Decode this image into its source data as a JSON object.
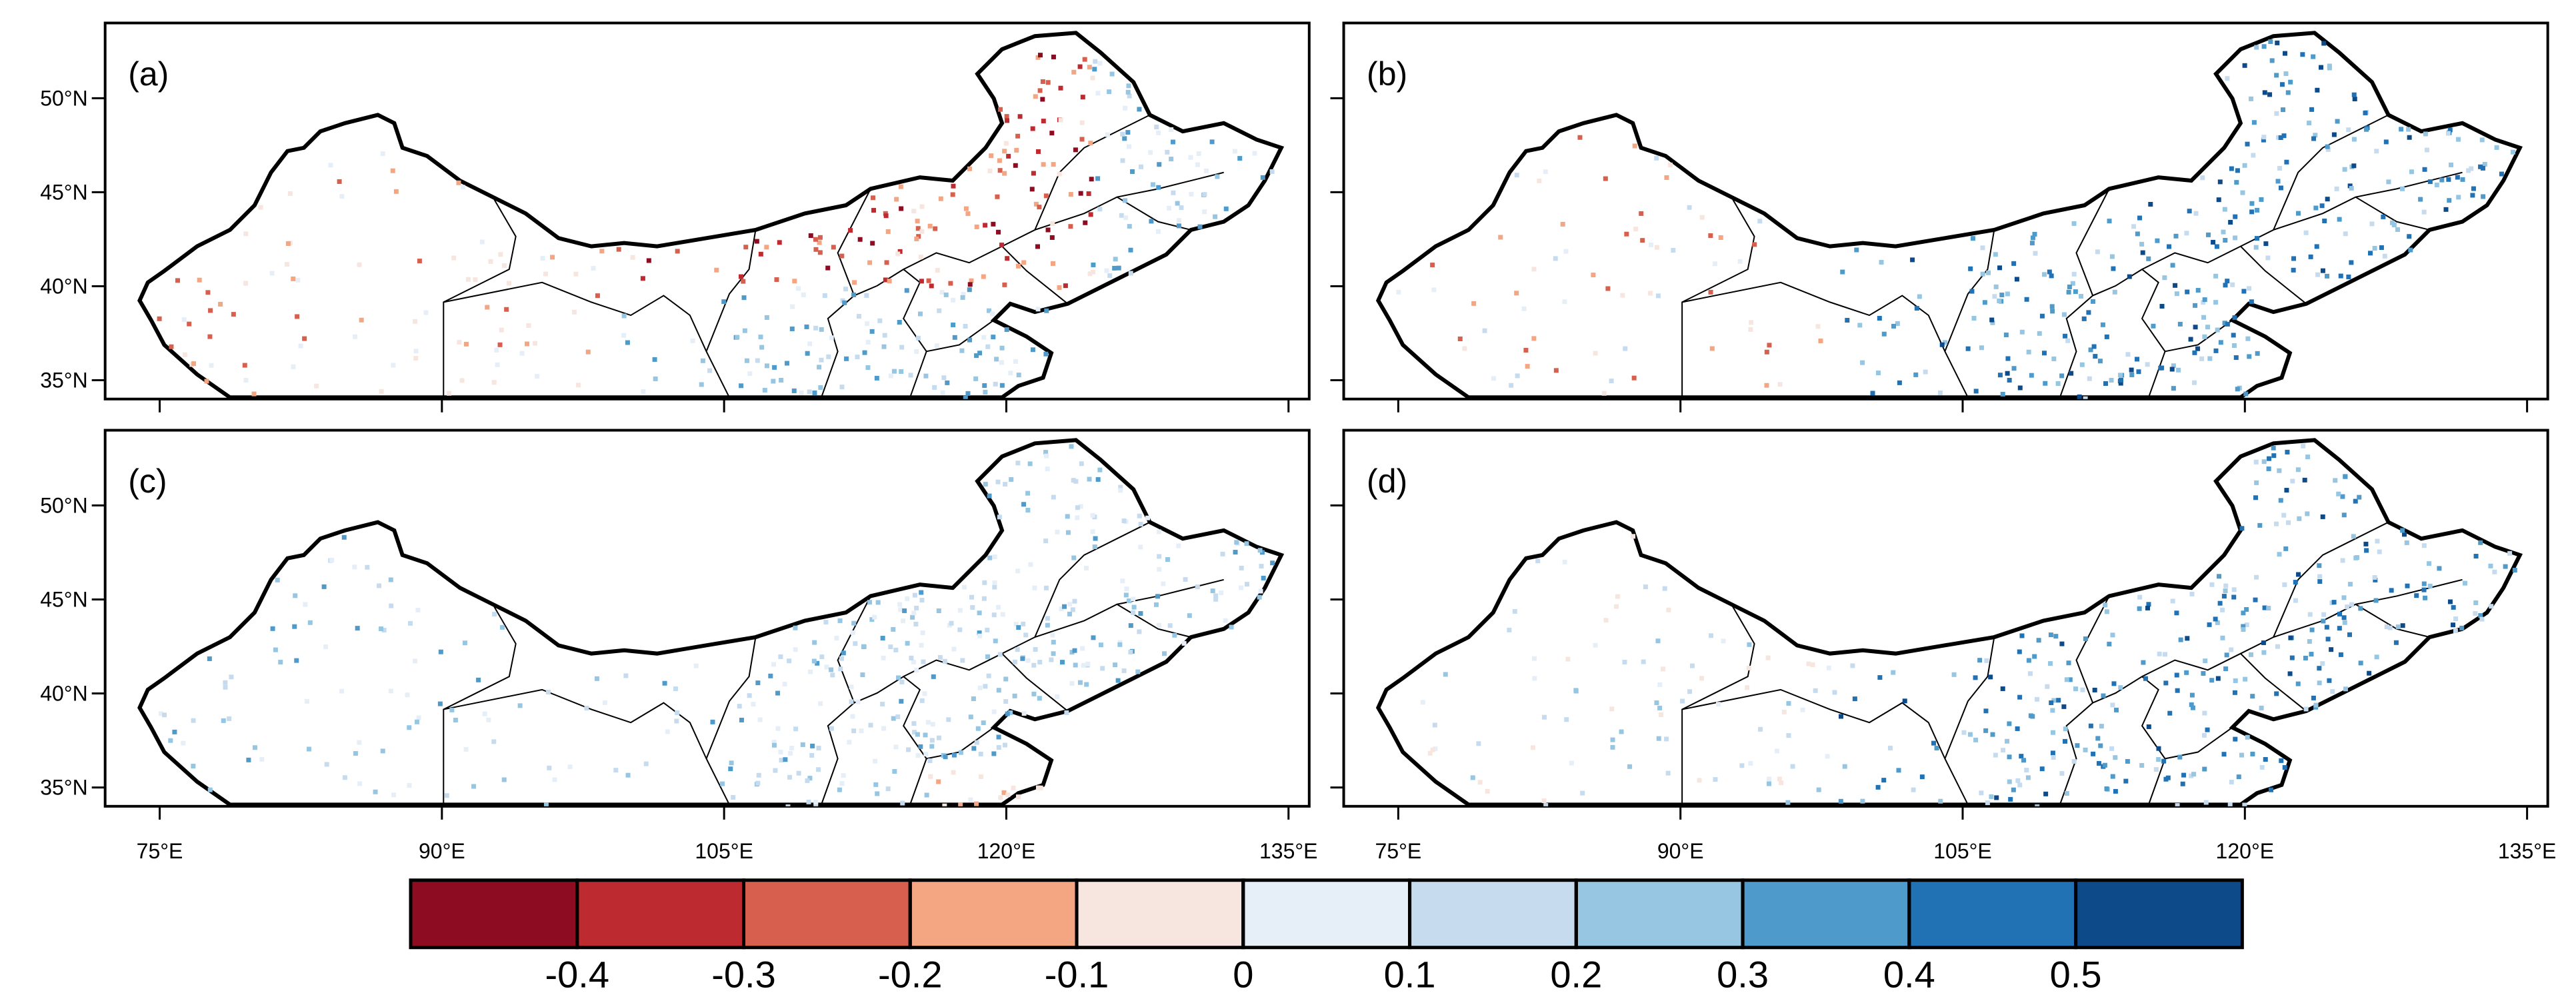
{
  "panels": [
    {
      "label": "(a)"
    },
    {
      "label": "(b)"
    },
    {
      "label": "(c)"
    },
    {
      "label": "(d)"
    }
  ],
  "lonlim": [
    72.1,
    136.1
  ],
  "latlim": [
    34,
    54
  ],
  "lon_ticks": [
    {
      "value": 75,
      "label": "75°E"
    },
    {
      "value": 90,
      "label": "90°E"
    },
    {
      "value": 105,
      "label": "105°E"
    },
    {
      "value": 120,
      "label": "120°E"
    },
    {
      "value": 135,
      "label": "135°E"
    }
  ],
  "lat_ticks": [
    {
      "value": 35,
      "label": "35°N"
    },
    {
      "value": 40,
      "label": "40°N"
    },
    {
      "value": 45,
      "label": "45°N"
    },
    {
      "value": 50,
      "label": "50°N"
    }
  ],
  "colorbar": {
    "lim": [
      -0.5,
      0.6
    ],
    "colors": [
      "#8e0c21",
      "#bd2a2f",
      "#d6604d",
      "#f4a582",
      "#f7e6df",
      "#e6eff7",
      "#c6dcee",
      "#96c6e1",
      "#4e9bcb",
      "#2171b5",
      "#0d4a8a"
    ],
    "ticks": [
      -0.4,
      -0.3,
      -0.2,
      -0.1,
      0,
      0.1,
      0.2,
      0.3,
      0.4,
      0.5
    ]
  }
}
